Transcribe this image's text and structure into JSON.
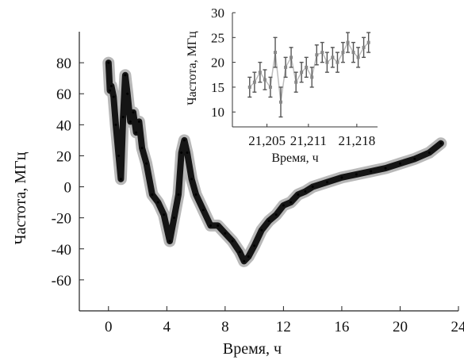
{
  "chart_data": [
    {
      "type": "line",
      "xlabel": "Время, ч",
      "ylabel": "Частота, МГц",
      "xlim": [
        -2,
        24
      ],
      "ylim": [
        -80,
        100
      ],
      "xticks": [
        0,
        4,
        8,
        12,
        16,
        20,
        24
      ],
      "yticks": [
        -60,
        -40,
        -20,
        0,
        20,
        40,
        60,
        80
      ],
      "grid": false,
      "series": [
        {
          "x": [
            0,
            0.1,
            0.2,
            0.35,
            0.5,
            0.7,
            0.85,
            1.0,
            1.15,
            1.3,
            1.5,
            1.7,
            1.9,
            2.1,
            2.3,
            2.6,
            3.0,
            3.4,
            3.8,
            4.2,
            4.5,
            4.8,
            5.0,
            5.2,
            5.4,
            5.7,
            6.0,
            6.5,
            7.0,
            7.5,
            8.0,
            8.5,
            9.0,
            9.3,
            9.6,
            10.0,
            10.5,
            11.0,
            11.5,
            12.0,
            12.5,
            13.0,
            13.5,
            14.0,
            15.0,
            16.0,
            17.0,
            18.0,
            19.0,
            20.0,
            21.0,
            22.0,
            22.8
          ],
          "y": [
            80,
            62,
            65,
            58,
            40,
            20,
            5,
            45,
            72,
            60,
            42,
            48,
            35,
            42,
            25,
            15,
            -5,
            -10,
            -18,
            -35,
            -20,
            -5,
            22,
            30,
            22,
            5,
            -5,
            -15,
            -25,
            -25,
            -30,
            -35,
            -42,
            -48,
            -45,
            -38,
            -28,
            -22,
            -18,
            -12,
            -10,
            -5,
            -3,
            0,
            3,
            6,
            8,
            10,
            12,
            15,
            18,
            22,
            28
          ]
        }
      ]
    },
    {
      "type": "scatter",
      "xlabel": "Время, ч",
      "ylabel": "Частота, МГц",
      "xlim": [
        21.2,
        21.221
      ],
      "ylim": [
        7,
        30
      ],
      "xticks": [
        21.205,
        21.211,
        21.218
      ],
      "xtick_labels": [
        "21,205",
        "21,211",
        "21,218"
      ],
      "yticks": [
        10,
        15,
        20,
        25,
        30
      ],
      "grid": false,
      "series": [
        {
          "x": [
            21.2025,
            21.2032,
            21.204,
            21.2047,
            21.2055,
            21.2062,
            21.207,
            21.2077,
            21.2085,
            21.2092,
            21.21,
            21.2107,
            21.2115,
            21.2122,
            21.213,
            21.2137,
            21.2145,
            21.2152,
            21.216,
            21.2167,
            21.2175,
            21.2182,
            21.219,
            21.2197
          ],
          "y": [
            15,
            16,
            18,
            16.5,
            15,
            22,
            12,
            19,
            21,
            16,
            18,
            19,
            17,
            21.5,
            22,
            20,
            21,
            20,
            22,
            24,
            22,
            21,
            23,
            24
          ],
          "error": [
            2,
            2,
            2,
            2,
            2,
            3,
            3,
            2,
            2,
            2,
            2,
            2,
            2,
            2,
            2,
            2,
            2,
            2,
            2,
            2,
            2,
            2,
            2,
            2
          ]
        }
      ]
    }
  ]
}
